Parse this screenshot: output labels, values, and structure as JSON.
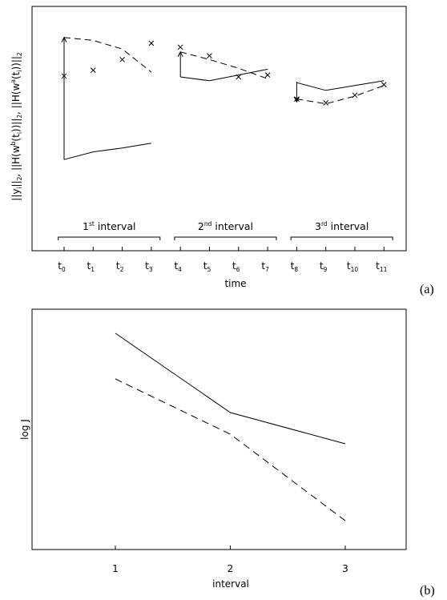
{
  "chart_data": [
    {
      "panel": "(a)",
      "type": "line",
      "xlabel": "time",
      "ylabel": "||y_i||_2, ||H(w^b(t_i))||_2, ||H(w^a(t_i))||_2",
      "ylabel_parts": [
        "||y",
        "i",
        "||",
        "2",
        ", ||H(w",
        "b",
        "(t",
        "i",
        "))||",
        "2",
        ", ||H(w",
        "a",
        "(t",
        "i",
        "))||",
        "2"
      ],
      "x_ticks": [
        {
          "base": "t",
          "sub": "0"
        },
        {
          "base": "t",
          "sub": "1"
        },
        {
          "base": "t",
          "sub": "2"
        },
        {
          "base": "t",
          "sub": "3"
        },
        {
          "base": "t",
          "sub": "4"
        },
        {
          "base": "t",
          "sub": "5"
        },
        {
          "base": "t",
          "sub": "6"
        },
        {
          "base": "t",
          "sub": "7"
        },
        {
          "base": "t",
          "sub": "8"
        },
        {
          "base": "t",
          "sub": "9"
        },
        {
          "base": "t",
          "sub": "10"
        },
        {
          "base": "t",
          "sub": "11"
        }
      ],
      "xlim": [
        -0.6,
        11.6
      ],
      "ylim": [
        0,
        10
      ],
      "intervals": [
        {
          "num": "1",
          "sup": "st",
          "word": "interval",
          "from": -0.2,
          "to": 3.3
        },
        {
          "num": "2",
          "sup": "nd",
          "word": "interval",
          "from": 3.8,
          "to": 7.3
        },
        {
          "num": "3",
          "sup": "rd",
          "word": "interval",
          "from": 7.8,
          "to": 11.3
        }
      ],
      "series": [
        {
          "style": "solid",
          "segment": 1,
          "x": [
            0,
            1,
            2,
            3
          ],
          "y": [
            2.2,
            2.6,
            2.8,
            3.05
          ]
        },
        {
          "style": "solid",
          "segment": 2,
          "x": [
            4,
            5,
            6,
            7
          ],
          "y": [
            6.5,
            6.3,
            6.6,
            6.9
          ]
        },
        {
          "style": "solid",
          "segment": 3,
          "x": [
            8,
            9,
            10,
            11
          ],
          "y": [
            6.2,
            5.8,
            6.05,
            6.3
          ]
        },
        {
          "style": "dashed",
          "segment": 1,
          "x": [
            0,
            1,
            2,
            3
          ],
          "y": [
            8.55,
            8.4,
            7.95,
            6.75
          ]
        },
        {
          "style": "dashed",
          "segment": 2,
          "x": [
            4,
            5,
            6,
            7
          ],
          "y": [
            7.8,
            7.4,
            6.95,
            6.4
          ]
        },
        {
          "style": "dashed",
          "segment": 3,
          "x": [
            8,
            9,
            10,
            11
          ],
          "y": [
            5.35,
            5.1,
            5.5,
            6.05
          ]
        }
      ],
      "markers": {
        "symbol": "x",
        "x": [
          0,
          1,
          2,
          3,
          4,
          5,
          6,
          7,
          8,
          9,
          10,
          11
        ],
        "y": [
          6.55,
          6.85,
          7.4,
          8.25,
          8.05,
          7.6,
          6.5,
          6.6,
          5.35,
          5.15,
          5.55,
          6.1
        ]
      },
      "arrows": [
        {
          "x": 0,
          "from": 2.2,
          "to": 8.55
        },
        {
          "x": 4,
          "from": 6.5,
          "to": 7.8
        },
        {
          "x": 8,
          "from": 6.25,
          "to": 5.2
        }
      ]
    },
    {
      "panel": "(b)",
      "type": "line",
      "xlabel": "interval",
      "ylabel": "log J",
      "categories": [
        "1",
        "2",
        "3"
      ],
      "x": [
        1,
        2,
        3
      ],
      "xlim": [
        0.2,
        3.6
      ],
      "ylim": [
        0,
        10
      ],
      "series": [
        {
          "style": "solid",
          "values": [
            9.0,
            5.7,
            4.4
          ]
        },
        {
          "style": "dashed",
          "values": [
            7.1,
            4.8,
            1.2
          ]
        }
      ]
    }
  ]
}
